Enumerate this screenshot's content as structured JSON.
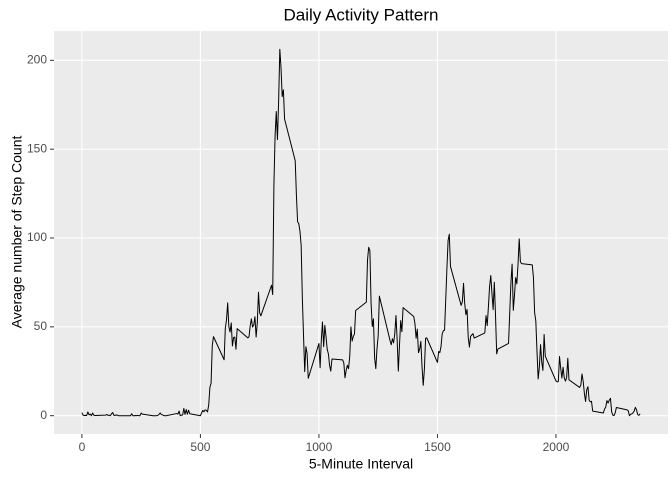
{
  "chart_data": {
    "type": "line",
    "title": "Daily Activity Pattern",
    "x_label": "5-Minute Interval",
    "y_label": "Average number of Step Count",
    "x": [
      0,
      5,
      10,
      15,
      20,
      25,
      30,
      35,
      40,
      45,
      50,
      55,
      100,
      105,
      110,
      115,
      120,
      125,
      130,
      135,
      140,
      145,
      150,
      155,
      200,
      205,
      210,
      215,
      220,
      225,
      230,
      235,
      240,
      245,
      250,
      255,
      300,
      305,
      310,
      315,
      320,
      325,
      330,
      335,
      340,
      345,
      350,
      355,
      400,
      405,
      410,
      415,
      420,
      425,
      430,
      435,
      440,
      445,
      450,
      455,
      500,
      505,
      510,
      515,
      520,
      525,
      530,
      535,
      540,
      545,
      550,
      555,
      600,
      605,
      610,
      615,
      620,
      625,
      630,
      635,
      640,
      645,
      650,
      655,
      700,
      705,
      710,
      715,
      720,
      725,
      730,
      735,
      740,
      745,
      750,
      755,
      800,
      805,
      810,
      815,
      820,
      825,
      830,
      835,
      840,
      845,
      850,
      855,
      900,
      905,
      910,
      915,
      920,
      925,
      930,
      935,
      940,
      945,
      950,
      955,
      1000,
      1005,
      1010,
      1015,
      1020,
      1025,
      1030,
      1035,
      1040,
      1045,
      1050,
      1055,
      1100,
      1105,
      1110,
      1115,
      1120,
      1125,
      1130,
      1135,
      1140,
      1145,
      1150,
      1155,
      1200,
      1205,
      1210,
      1215,
      1220,
      1225,
      1230,
      1235,
      1240,
      1245,
      1250,
      1255,
      1300,
      1305,
      1310,
      1315,
      1320,
      1325,
      1330,
      1335,
      1340,
      1345,
      1350,
      1355,
      1400,
      1405,
      1410,
      1415,
      1420,
      1425,
      1430,
      1435,
      1440,
      1445,
      1450,
      1455,
      1500,
      1505,
      1510,
      1515,
      1520,
      1525,
      1530,
      1535,
      1540,
      1545,
      1550,
      1555,
      1600,
      1605,
      1610,
      1615,
      1620,
      1625,
      1630,
      1635,
      1640,
      1645,
      1650,
      1655,
      1700,
      1705,
      1710,
      1715,
      1720,
      1725,
      1730,
      1735,
      1740,
      1745,
      1750,
      1755,
      1800,
      1805,
      1810,
      1815,
      1820,
      1825,
      1830,
      1835,
      1840,
      1845,
      1850,
      1855,
      1900,
      1905,
      1910,
      1915,
      1920,
      1925,
      1930,
      1935,
      1940,
      1945,
      1950,
      1955,
      2000,
      2005,
      2010,
      2015,
      2020,
      2025,
      2030,
      2035,
      2040,
      2045,
      2050,
      2055,
      2100,
      2105,
      2110,
      2115,
      2120,
      2125,
      2130,
      2135,
      2140,
      2145,
      2150,
      2155,
      2200,
      2205,
      2210,
      2215,
      2220,
      2225,
      2230,
      2235,
      2240,
      2245,
      2250,
      2255,
      2300,
      2305,
      2310,
      2315,
      2320,
      2325,
      2330,
      2335,
      2340,
      2345,
      2350,
      2355
    ],
    "values": [
      1.7,
      0.3,
      0.1,
      0.2,
      0.1,
      2.1,
      0.5,
      0.9,
      0,
      1.5,
      0.3,
      0.1,
      0.3,
      0.7,
      0.2,
      0.3,
      0,
      1.1,
      1.8,
      0.2,
      0.2,
      0.4,
      0.3,
      0,
      0,
      0,
      1.1,
      0,
      0,
      0.1,
      0,
      0.2,
      0,
      0,
      1.5,
      0.9,
      0,
      0,
      0,
      0,
      0.2,
      0.6,
      1.6,
      0.6,
      0.5,
      0.1,
      0,
      0,
      1.2,
      0.9,
      2.6,
      0,
      0.3,
      0.4,
      4.1,
      0.7,
      3.5,
      0.8,
      3.1,
      1.1,
      0,
      1.6,
      3,
      2.2,
      3.3,
      3,
      2.1,
      6.1,
      16,
      18.3,
      39.5,
      44.5,
      31.5,
      49.3,
      53.8,
      63.5,
      50,
      47.1,
      52.2,
      39.3,
      44,
      44.2,
      37.4,
      49,
      43.8,
      44.4,
      50.5,
      54.5,
      49.9,
      51,
      55.7,
      44.3,
      52.3,
      69.5,
      57.8,
      56.2,
      73.4,
      68.2,
      129.4,
      157.5,
      171.2,
      155.4,
      177.3,
      206.2,
      195.9,
      179.6,
      183.4,
      167,
      143.5,
      124,
      109.1,
      108.1,
      103.7,
      96,
      66.2,
      45.2,
      24.8,
      38.8,
      35,
      21.1,
      40.6,
      27,
      42.4,
      52.7,
      38.9,
      50.8,
      44.3,
      37.4,
      34.7,
      28.3,
      25.1,
      31.9,
      31.4,
      29.7,
      21.3,
      25.5,
      28.4,
      26.5,
      33.4,
      50,
      42,
      44.6,
      46,
      59.2,
      63.9,
      87.7,
      94.8,
      92.8,
      63.4,
      50.2,
      54.5,
      32.4,
      26.5,
      37.7,
      45.1,
      67.3,
      42.3,
      39.9,
      43.3,
      41,
      46.2,
      56.4,
      42.8,
      25.1,
      40,
      53.5,
      47.3,
      60.8,
      55.8,
      52,
      43.6,
      48.7,
      35.5,
      37.5,
      41.8,
      27.5,
      17.1,
      26.1,
      43.6,
      43.8,
      30,
      36.1,
      35.5,
      38.8,
      46,
      47.8,
      48.1,
      65.3,
      82.9,
      98.7,
      102.1,
      84,
      62.1,
      64.1,
      74.5,
      63.2,
      56.9,
      59.8,
      43.9,
      38.6,
      44.7,
      45.5,
      46.2,
      43.7,
      46.6,
      56.3,
      50.7,
      61.2,
      72.7,
      78.9,
      68.9,
      59.7,
      75.1,
      56.5,
      34.8,
      37.5,
      40.7,
      58,
      74.7,
      85.3,
      59.3,
      67.8,
      77.7,
      74.2,
      85.3,
      99.5,
      86.6,
      85.6,
      84.9,
      77.8,
      58,
      53.4,
      36.3,
      20.7,
      27.4,
      40,
      30.2,
      25.5,
      45.7,
      33.5,
      19.6,
      19,
      19.3,
      33.3,
      26.8,
      21.2,
      27.3,
      21.3,
      19.5,
      21.3,
      32.3,
      20.2,
      15.9,
      17.2,
      23.5,
      19.2,
      12.5,
      8,
      14.7,
      16.3,
      8.7,
      7.8,
      8.1,
      2.6,
      1.5,
      3.7,
      4.8,
      8.5,
      7.1,
      8.7,
      9.8,
      2.2,
      0.3,
      0.1,
      1.6,
      4.6,
      3.3,
      2.8,
      0,
      0.8,
      1,
      1.6,
      2.6,
      4.7,
      3.3,
      0.6,
      0.2,
      1.1
    ],
    "color": "#000000",
    "xlim": [
      -117.75,
      2472.75
    ],
    "xticks": [
      0,
      500,
      1000,
      1500,
      2000
    ],
    "ylim": [
      -10.3,
      216.5
    ],
    "yticks": [
      0,
      50,
      100,
      150,
      200
    ],
    "grid": true
  }
}
